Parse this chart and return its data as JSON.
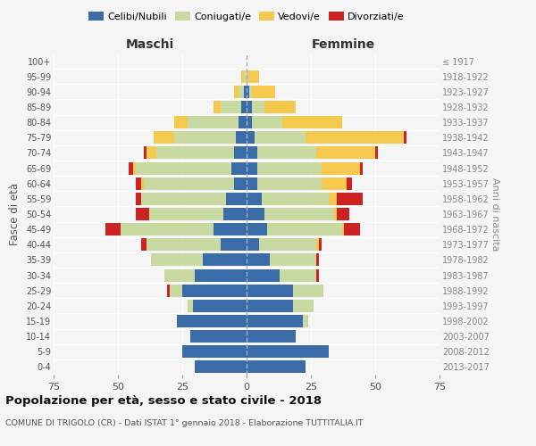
{
  "age_groups": [
    "0-4",
    "5-9",
    "10-14",
    "15-19",
    "20-24",
    "25-29",
    "30-34",
    "35-39",
    "40-44",
    "45-49",
    "50-54",
    "55-59",
    "60-64",
    "65-69",
    "70-74",
    "75-79",
    "80-84",
    "85-89",
    "90-94",
    "95-99",
    "100+"
  ],
  "birth_years": [
    "2013-2017",
    "2008-2012",
    "2003-2007",
    "1998-2002",
    "1993-1997",
    "1988-1992",
    "1983-1987",
    "1978-1982",
    "1973-1977",
    "1968-1972",
    "1963-1967",
    "1958-1962",
    "1953-1957",
    "1948-1952",
    "1943-1947",
    "1938-1942",
    "1933-1937",
    "1928-1932",
    "1923-1927",
    "1918-1922",
    "≤ 1917"
  ],
  "maschi": {
    "celibi": [
      20,
      25,
      22,
      27,
      21,
      25,
      20,
      17,
      10,
      13,
      9,
      8,
      5,
      6,
      5,
      4,
      3,
      2,
      1,
      0,
      0
    ],
    "coniugati": [
      0,
      0,
      0,
      0,
      2,
      5,
      12,
      20,
      29,
      36,
      29,
      33,
      35,
      37,
      30,
      24,
      20,
      8,
      2,
      1,
      0
    ],
    "vedovi": [
      0,
      0,
      0,
      0,
      0,
      0,
      0,
      0,
      0,
      0,
      0,
      0,
      1,
      1,
      4,
      8,
      5,
      3,
      2,
      1,
      0
    ],
    "divorziati": [
      0,
      0,
      0,
      0,
      0,
      1,
      0,
      0,
      2,
      6,
      5,
      2,
      2,
      2,
      1,
      0,
      0,
      0,
      0,
      0,
      0
    ]
  },
  "femmine": {
    "nubili": [
      23,
      32,
      19,
      22,
      18,
      18,
      13,
      9,
      5,
      8,
      7,
      6,
      4,
      4,
      4,
      3,
      2,
      2,
      1,
      0,
      0
    ],
    "coniugate": [
      0,
      0,
      0,
      2,
      8,
      12,
      14,
      18,
      22,
      29,
      27,
      26,
      25,
      25,
      23,
      20,
      12,
      5,
      1,
      0,
      0
    ],
    "vedove": [
      0,
      0,
      0,
      0,
      0,
      0,
      0,
      0,
      1,
      1,
      1,
      3,
      10,
      15,
      23,
      38,
      23,
      12,
      9,
      5,
      0
    ],
    "divorziate": [
      0,
      0,
      0,
      0,
      0,
      0,
      1,
      1,
      1,
      6,
      5,
      10,
      2,
      1,
      1,
      1,
      0,
      0,
      0,
      0,
      0
    ]
  },
  "colors": {
    "celibi": "#3a6ca8",
    "coniugati": "#c8d9a2",
    "vedovi": "#f5c84e",
    "divorziati": "#cc2222"
  },
  "title": "Popolazione per età, sesso e stato civile - 2018",
  "subtitle": "COMUNE DI TRIGOLO (CR) - Dati ISTAT 1° gennaio 2018 - Elaborazione TUTTITALIA.IT",
  "xlabel_left": "Maschi",
  "xlabel_right": "Femmine",
  "ylabel_left": "Fasce di età",
  "ylabel_right": "Anni di nascita",
  "xlim": 75,
  "background_color": "#f5f5f5",
  "grid_color": "#ffffff",
  "dashed_line_color": "#aaaaaa"
}
